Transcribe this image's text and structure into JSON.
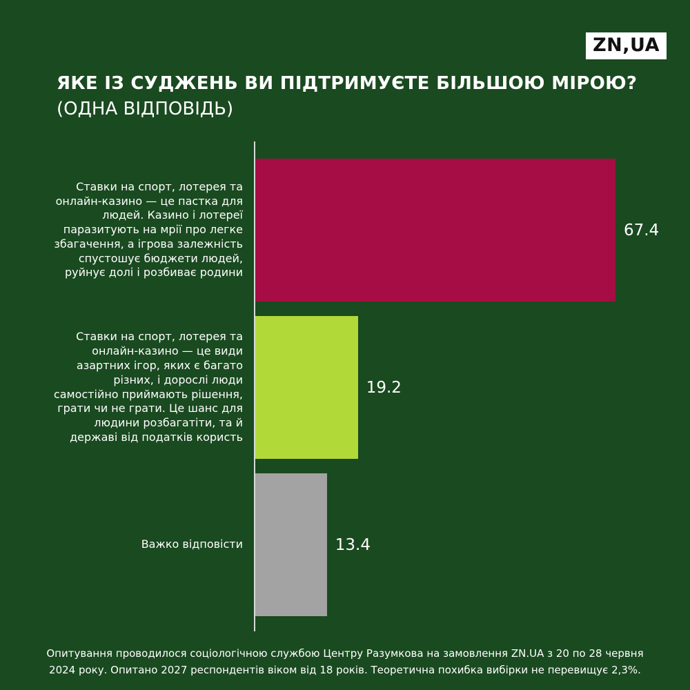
{
  "logo": {
    "text": "ZN,UA"
  },
  "header": {
    "title": "ЯКЕ ІЗ СУДЖЕНЬ ВИ ПІДТРИМУЄТЕ БІЛЬШОЮ МІРОЮ?",
    "subtitle": "(ОДНА ВІДПОВІДЬ)"
  },
  "chart_data": {
    "type": "bar",
    "orientation": "horizontal",
    "title": "ЯКЕ ІЗ СУДЖЕНЬ ВИ ПІДТРИМУЄТЕ БІЛЬШОЮ МІРОЮ? (ОДНА ВІДПОВІДЬ)",
    "categories": [
      "Ставки на спорт, лотерея та онлайн-казино — це пастка для людей. Казино і лотереї паразитують на мрії про легке збагачення, а ігрова залежність спустошує бюджети людей, руйнує долі і розбиває родини",
      "Ставки на спорт, лотерея та онлайн-казино — це види азартних ігор, яких є багато різних, і дорослі люди самостійно приймають рішення, грати чи не грати. Це шанс для людини розбагатіти, та й державі від податків користь",
      "Важко відповісти"
    ],
    "values": [
      67.4,
      19.2,
      13.4
    ],
    "value_labels": [
      "67.4",
      "19.2",
      "13.4"
    ],
    "colors": [
      "#a60d44",
      "#b1da39",
      "#a3a3a3"
    ],
    "xlim": [
      0,
      75
    ],
    "grid": false,
    "legend": "none",
    "axis_line_color": "#d6dcd6",
    "background_color": "#1a4a20",
    "text_color": "#ffffff"
  },
  "footer": {
    "lines": [
      "Опитування проводилося соціологічною службою Центру Разумкова на замовлення ZN.UA з 20 по 28 червня",
      "2024 року. Опитано 2027 респондентів віком від 18 років. Теоретична похибка вибірки не перевищує 2,3%."
    ]
  }
}
